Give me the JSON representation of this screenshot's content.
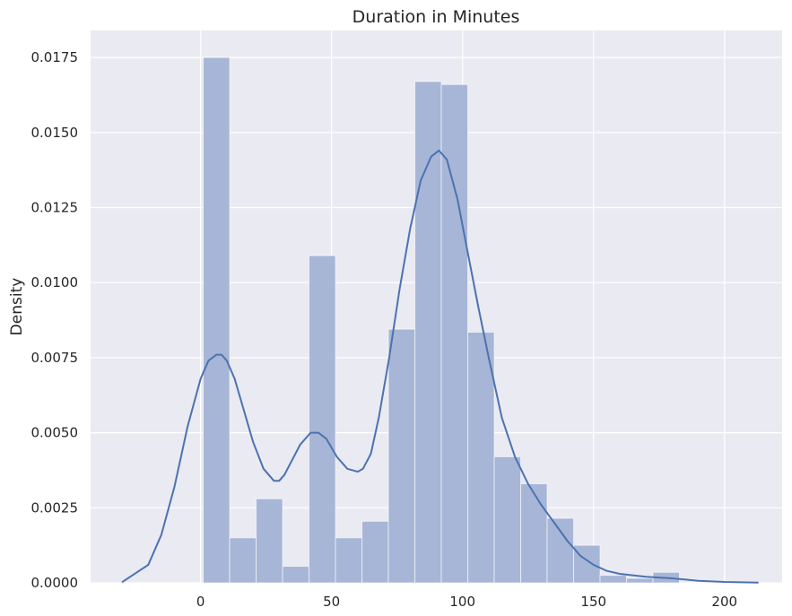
{
  "chart_data": {
    "type": "histogram",
    "title": "Duration in Minutes",
    "xlabel": "",
    "ylabel": "Density",
    "xlim": [
      -42,
      222
    ],
    "ylim": [
      0,
      0.0184
    ],
    "grid": true,
    "x_ticks": [
      0,
      50,
      100,
      150,
      200
    ],
    "y_ticks": [
      "0.0000",
      "0.0025",
      "0.0050",
      "0.0075",
      "0.0100",
      "0.0125",
      "0.0150",
      "0.0175"
    ],
    "colors": {
      "background": "#eaeaf2",
      "grid": "#ffffff",
      "bar": "#a7b6d6",
      "kde": "#4c72b0"
    },
    "bins": [
      {
        "x0": 1,
        "x1": 11.1,
        "density": 0.0175
      },
      {
        "x0": 11.1,
        "x1": 21.2,
        "density": 0.0015
      },
      {
        "x0": 21.2,
        "x1": 31.3,
        "density": 0.0028
      },
      {
        "x0": 31.3,
        "x1": 41.4,
        "density": 0.00055
      },
      {
        "x0": 41.4,
        "x1": 51.5,
        "density": 0.0109
      },
      {
        "x0": 51.5,
        "x1": 61.6,
        "density": 0.0015
      },
      {
        "x0": 61.6,
        "x1": 71.7,
        "density": 0.00205
      },
      {
        "x0": 71.7,
        "x1": 81.8,
        "density": 0.00845
      },
      {
        "x0": 81.8,
        "x1": 91.9,
        "density": 0.0167
      },
      {
        "x0": 91.9,
        "x1": 102.0,
        "density": 0.0166
      },
      {
        "x0": 102.0,
        "x1": 112.1,
        "density": 0.00835
      },
      {
        "x0": 112.1,
        "x1": 122.2,
        "density": 0.0042
      },
      {
        "x0": 122.2,
        "x1": 132.3,
        "density": 0.0033
      },
      {
        "x0": 132.3,
        "x1": 142.4,
        "density": 0.00215
      },
      {
        "x0": 142.4,
        "x1": 152.5,
        "density": 0.00125
      },
      {
        "x0": 152.5,
        "x1": 162.6,
        "density": 0.00025
      },
      {
        "x0": 162.6,
        "x1": 172.7,
        "density": 0.00015
      },
      {
        "x0": 172.7,
        "x1": 182.8,
        "density": 0.00035
      }
    ],
    "kde": {
      "x": [
        -30,
        -20,
        -15,
        -10,
        -5,
        0,
        3,
        6,
        8,
        10,
        13,
        16,
        20,
        24,
        28,
        30,
        32,
        35,
        38,
        42,
        45,
        48,
        52,
        56,
        60,
        62,
        65,
        68,
        72,
        76,
        80,
        84,
        88,
        91,
        94,
        98,
        102,
        106,
        110,
        115,
        120,
        125,
        130,
        135,
        140,
        145,
        150,
        155,
        160,
        170,
        180,
        190,
        200,
        213
      ],
      "y": [
        2e-05,
        0.0006,
        0.0016,
        0.0032,
        0.0052,
        0.0068,
        0.0074,
        0.0076,
        0.0076,
        0.0074,
        0.0068,
        0.0059,
        0.0047,
        0.0038,
        0.0034,
        0.0034,
        0.0036,
        0.0041,
        0.0046,
        0.005,
        0.005,
        0.0048,
        0.0042,
        0.0038,
        0.0037,
        0.0038,
        0.0043,
        0.0055,
        0.0075,
        0.0098,
        0.0118,
        0.0134,
        0.0142,
        0.0144,
        0.0141,
        0.0128,
        0.011,
        0.0092,
        0.0075,
        0.0055,
        0.0042,
        0.0033,
        0.0026,
        0.002,
        0.0014,
        0.0009,
        0.0006,
        0.0004,
        0.0003,
        0.0002,
        0.00015,
        7e-05,
        3e-05,
        1e-05
      ]
    }
  }
}
